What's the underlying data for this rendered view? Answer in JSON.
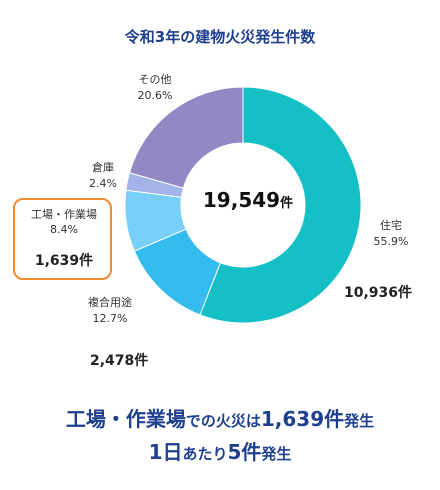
{
  "chart_data": {
    "type": "pie",
    "title": "令和3年の建物火災発生件数",
    "total": "19,549",
    "total_unit": "件",
    "unit": "件",
    "slices": [
      {
        "name": "住宅",
        "percent": "55.9%",
        "value": 10936,
        "count": "10,936件",
        "color": "#14c0c6"
      },
      {
        "name": "複合用途",
        "percent": "12.7%",
        "value": 2478,
        "count": "2,478件",
        "color": "#35bcee"
      },
      {
        "name": "工場・作業場",
        "percent": "8.4%",
        "value": 1639,
        "count": "1,639件",
        "color": "#78cff7"
      },
      {
        "name": "倉庫",
        "percent": "2.4%",
        "value": 469,
        "color": "#a2b4e8"
      },
      {
        "name": "その他",
        "percent": "20.6%",
        "value": 4027,
        "color": "#9189c4"
      }
    ]
  },
  "footer": {
    "line1_highlight": "工場・作業場",
    "line1_mid": "での火災は",
    "line1_count": "1,639件",
    "line1_end": "発生",
    "line2_day": "1日",
    "line2_mid": "あたり",
    "line2_count": "5件",
    "line2_end": "発生"
  }
}
